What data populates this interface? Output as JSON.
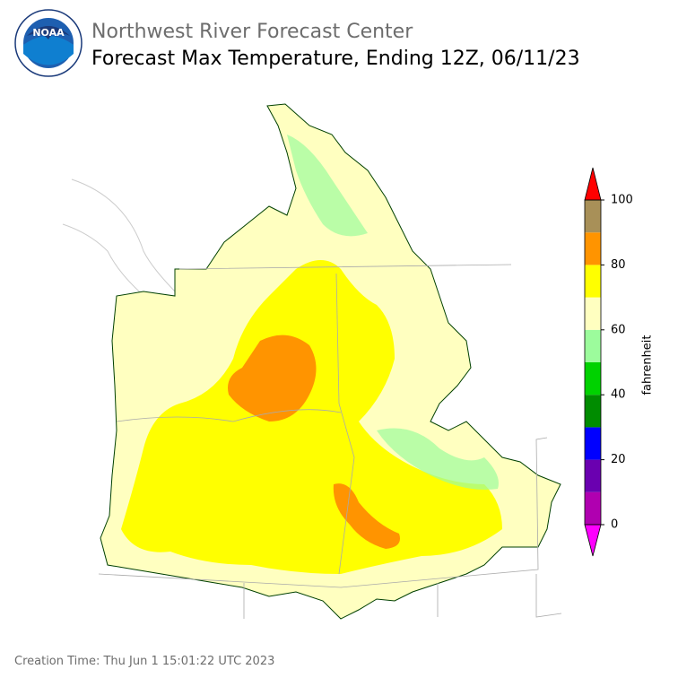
{
  "header": {
    "logo_text": "NOAA",
    "title": "Northwest River Forecast Center",
    "subtitle": "Forecast Max Temperature, Ending 12Z, 06/11/23"
  },
  "colorbar": {
    "label": "fahrenheit",
    "lim": [
      0,
      100
    ],
    "ticks": [
      0,
      20,
      40,
      60,
      80,
      100
    ],
    "under_color": "#ff00ff",
    "over_color": "#ff0000",
    "bins": [
      {
        "from": 0,
        "to": 10,
        "color": "#b000b0"
      },
      {
        "from": 10,
        "to": 20,
        "color": "#6a00b0"
      },
      {
        "from": 20,
        "to": 30,
        "color": "#0000ff"
      },
      {
        "from": 30,
        "to": 40,
        "color": "#008c00"
      },
      {
        "from": 40,
        "to": 50,
        "color": "#00d200"
      },
      {
        "from": 50,
        "to": 60,
        "color": "#9cfc9c"
      },
      {
        "from": 60,
        "to": 70,
        "color": "#ffffc0"
      },
      {
        "from": 70,
        "to": 80,
        "color": "#ffff00"
      },
      {
        "from": 80,
        "to": 90,
        "color": "#ff9400"
      },
      {
        "from": 90,
        "to": 100,
        "color": "#a89058"
      }
    ]
  },
  "footer": {
    "creation_time": "Creation Time: Thu Jun 1 15:01:22 UTC 2023"
  }
}
